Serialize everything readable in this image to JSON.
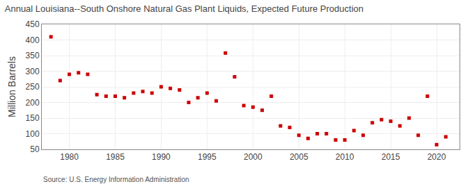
{
  "chart_data": {
    "type": "scatter",
    "title": "Annual Louisiana--South Onshore Natural Gas Plant Liquids, Expected Future Production",
    "y_label": "Million Barrels",
    "annotations": [
      "Source: U.S. Energy Information Administration"
    ],
    "x": [
      1978,
      1979,
      1980,
      1981,
      1982,
      1983,
      1984,
      1985,
      1986,
      1987,
      1988,
      1989,
      1990,
      1991,
      1992,
      1993,
      1994,
      1995,
      1996,
      1997,
      1998,
      1999,
      2000,
      2001,
      2002,
      2003,
      2004,
      2005,
      2006,
      2007,
      2008,
      2009,
      2010,
      2011,
      2012,
      2013,
      2014,
      2015,
      2016,
      2017,
      2018,
      2019,
      2020,
      2021
    ],
    "values": [
      410,
      270,
      290,
      295,
      290,
      225,
      220,
      220,
      215,
      230,
      235,
      230,
      250,
      245,
      240,
      200,
      215,
      230,
      205,
      358,
      282,
      190,
      185,
      175,
      220,
      125,
      120,
      95,
      85,
      100,
      100,
      80,
      80,
      110,
      95,
      135,
      145,
      140,
      125,
      150,
      95,
      220,
      65,
      90
    ],
    "color": "#cc0000",
    "marker": "square",
    "xlim": [
      1977,
      2022.5
    ],
    "ylim": [
      50,
      450
    ],
    "xticks": [
      1980,
      1985,
      1990,
      1995,
      2000,
      2005,
      2010,
      2015,
      2020
    ],
    "yticks": [
      50,
      100,
      150,
      200,
      250,
      300,
      350,
      400,
      450
    ],
    "grid": true
  }
}
